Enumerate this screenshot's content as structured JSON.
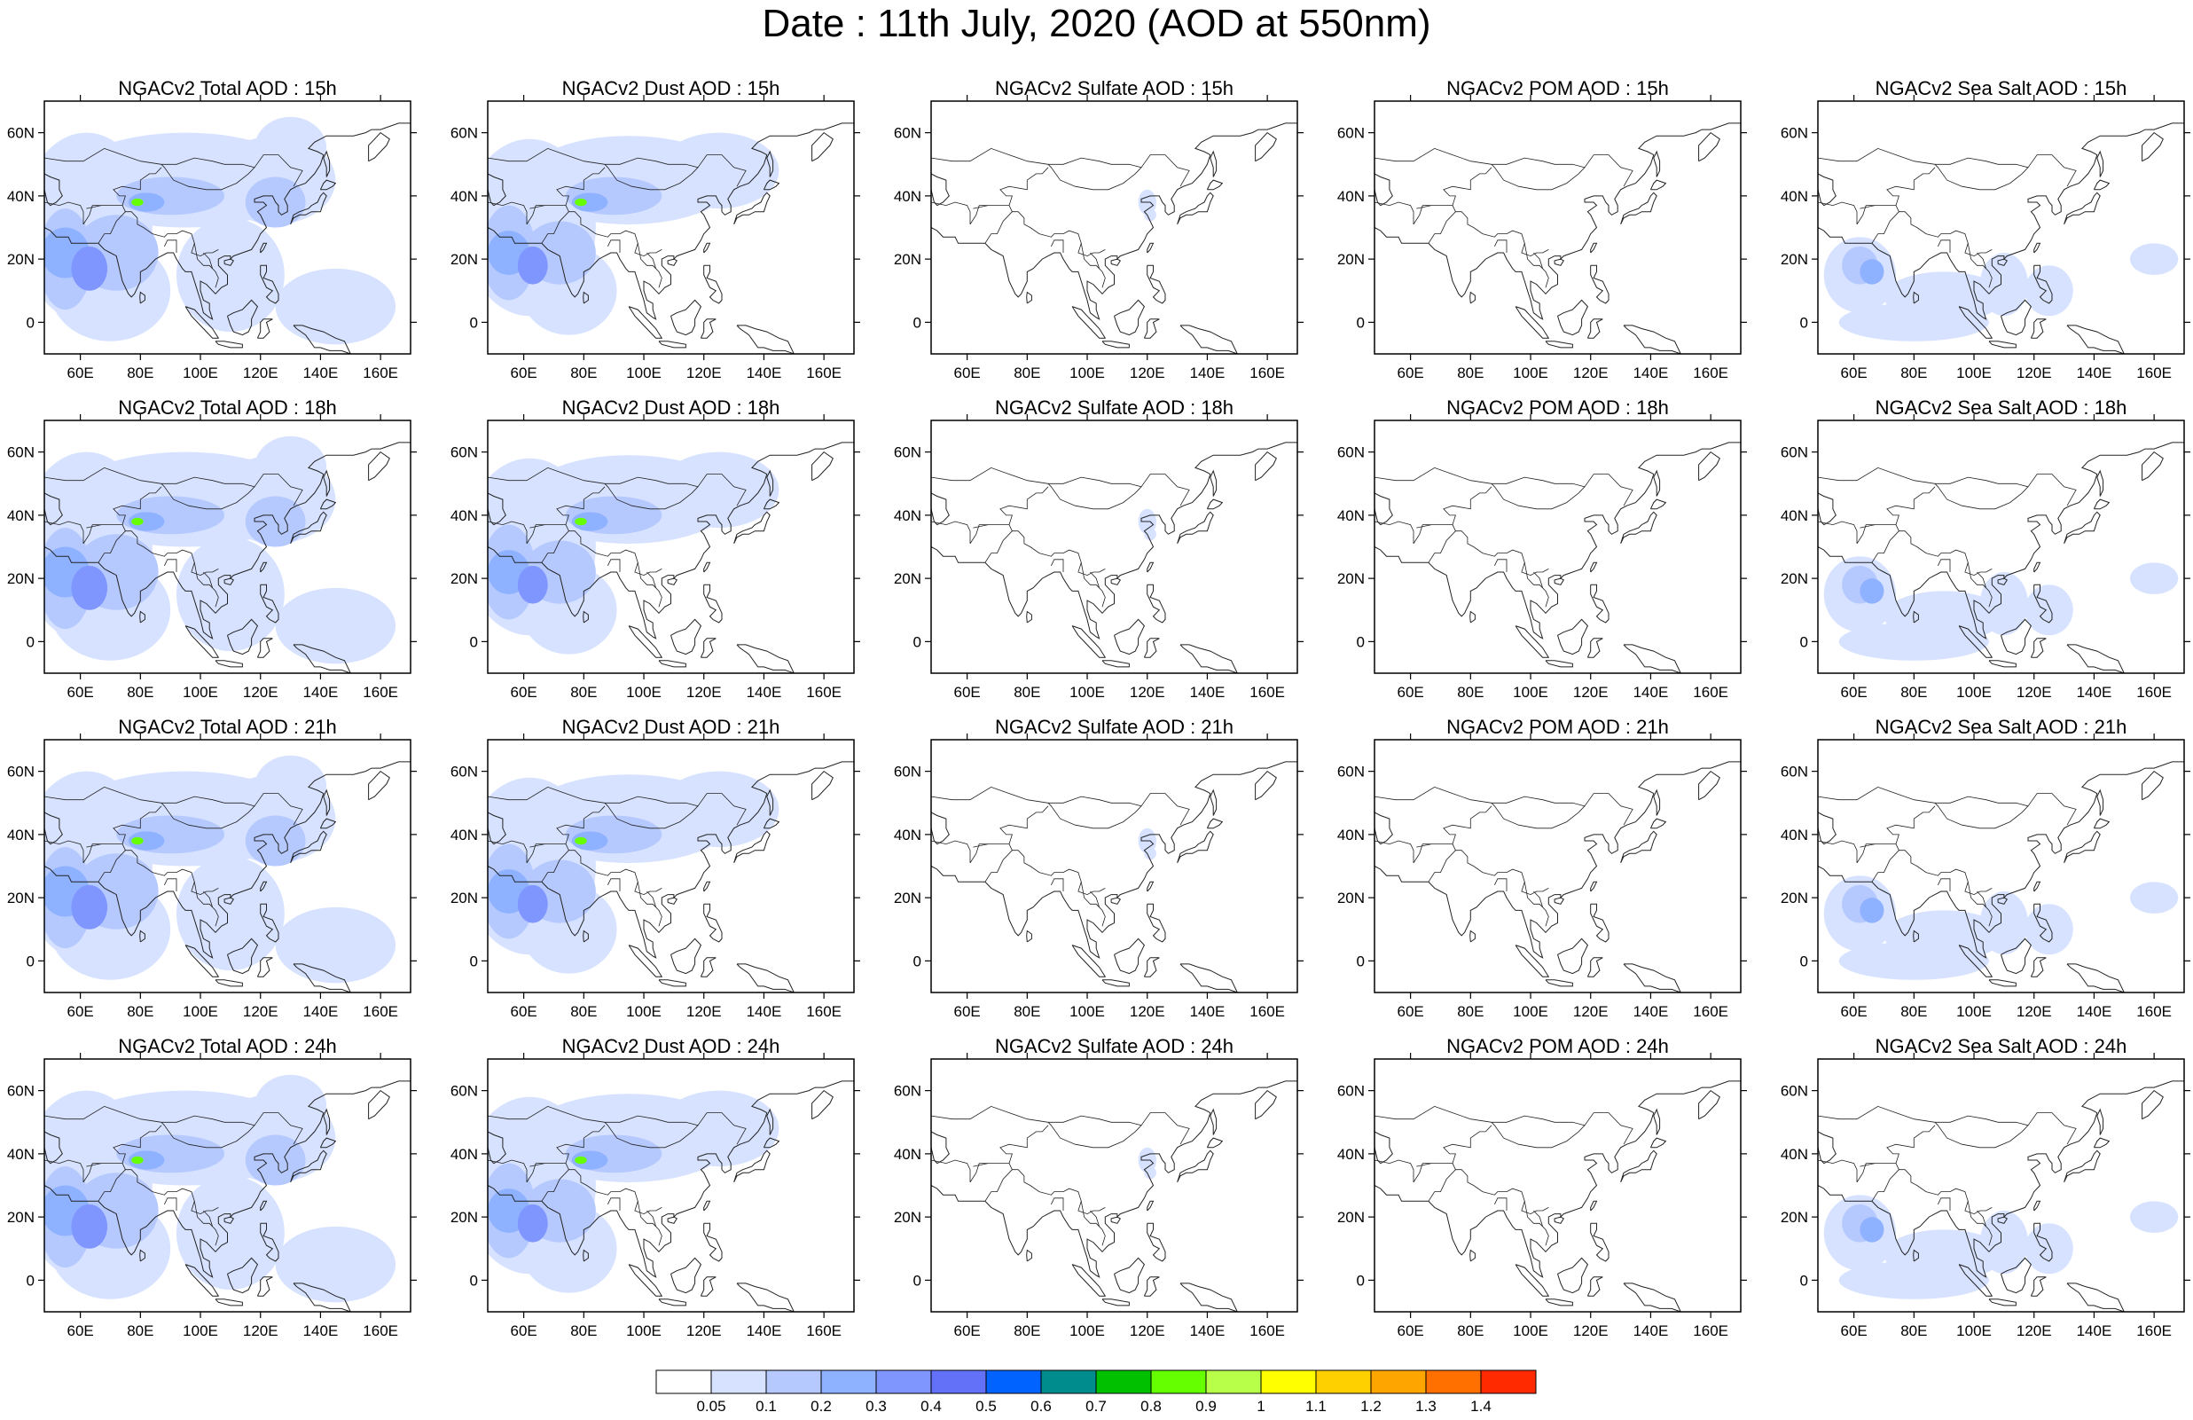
{
  "title": "Date : 11th July, 2020 (AOD at 550nm)",
  "axes": {
    "lon_ticks": [
      "60E",
      "80E",
      "100E",
      "120E",
      "140E",
      "160E"
    ],
    "lat_ticks": [
      "60N",
      "40N",
      "20N",
      "0"
    ],
    "lon_values": [
      60,
      80,
      100,
      120,
      140,
      160
    ],
    "lat_values": [
      60,
      40,
      20,
      0
    ],
    "lon_range": [
      48,
      170
    ],
    "lat_range": [
      -10,
      70
    ]
  },
  "rows": [
    "15h",
    "18h",
    "21h",
    "24h"
  ],
  "columns": [
    "Total",
    "Dust",
    "Sulfate",
    "POM",
    "Sea Salt"
  ],
  "panel_titles": [
    [
      "NGACv2 Total AOD : 15h",
      "NGACv2 Dust AOD : 15h",
      "NGACv2 Sulfate AOD : 15h",
      "NGACv2 POM AOD : 15h",
      "NGACv2 Sea Salt AOD : 15h"
    ],
    [
      "NGACv2 Total AOD : 18h",
      "NGACv2 Dust AOD : 18h",
      "NGACv2 Sulfate AOD : 18h",
      "NGACv2 POM AOD : 18h",
      "NGACv2 Sea Salt AOD : 18h"
    ],
    [
      "NGACv2 Total AOD : 21h",
      "NGACv2 Dust AOD : 21h",
      "NGACv2 Sulfate AOD : 21h",
      "NGACv2 POM AOD : 21h",
      "NGACv2 Sea Salt AOD : 21h"
    ],
    [
      "NGACv2 Total AOD : 24h",
      "NGACv2 Dust AOD : 24h",
      "NGACv2 Sulfate AOD : 24h",
      "NGACv2 POM AOD : 24h",
      "NGACv2 Sea Salt  AOD : 24h"
    ]
  ],
  "colorbar": {
    "labels": [
      "0.05",
      "0.1",
      "0.2",
      "0.3",
      "0.4",
      "0.5",
      "0.6",
      "0.7",
      "0.8",
      "0.9",
      "1",
      "1.1",
      "1.2",
      "1.3",
      "1.4"
    ],
    "colors": [
      "#ffffff",
      "#d6e2ff",
      "#b5c9ff",
      "#8eb2ff",
      "#7f96ff",
      "#6370f8",
      "#0062ff",
      "#008c8c",
      "#00c000",
      "#66ff00",
      "#b8ff4a",
      "#ffff00",
      "#ffd000",
      "#ffa500",
      "#ff7000",
      "#ff2a00"
    ]
  },
  "colors": {
    "frame": "#000000",
    "coast": "#222222",
    "light_blue": "#d6e2ff",
    "mid_blue": "#b5c9ff",
    "blue": "#8eb2ff",
    "dark_blue": "#7f96ff",
    "green": "#66ff00"
  }
}
